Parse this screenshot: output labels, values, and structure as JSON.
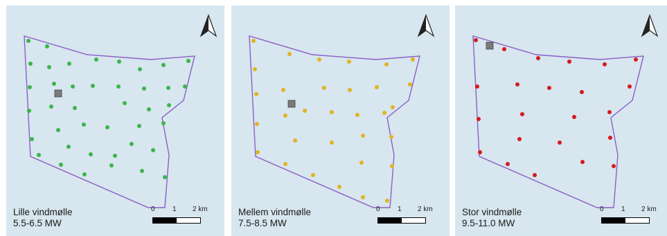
{
  "colors": {
    "background": "#d7e6ef",
    "boundary": "#8a5fc6",
    "existing_site": "#7a7a7a"
  },
  "scale_bar": {
    "labels": [
      "0",
      "1",
      "2 km"
    ]
  },
  "panels": [
    {
      "id": "lille",
      "title": "Lille vindmølle",
      "capacity": "5.5-6.5 MW",
      "turbine_color": "#3ab54a",
      "turbine_count": 41
    },
    {
      "id": "mellem",
      "title": "Mellem vindmølle",
      "capacity": "7.5-8.5 MW",
      "turbine_color": "#e2b423",
      "turbine_count": 34
    },
    {
      "id": "stor",
      "title": "Stor vindmølle",
      "capacity": "9.5-11.0 MW",
      "turbine_color": "#d7191c",
      "turbine_count": 23
    }
  ]
}
